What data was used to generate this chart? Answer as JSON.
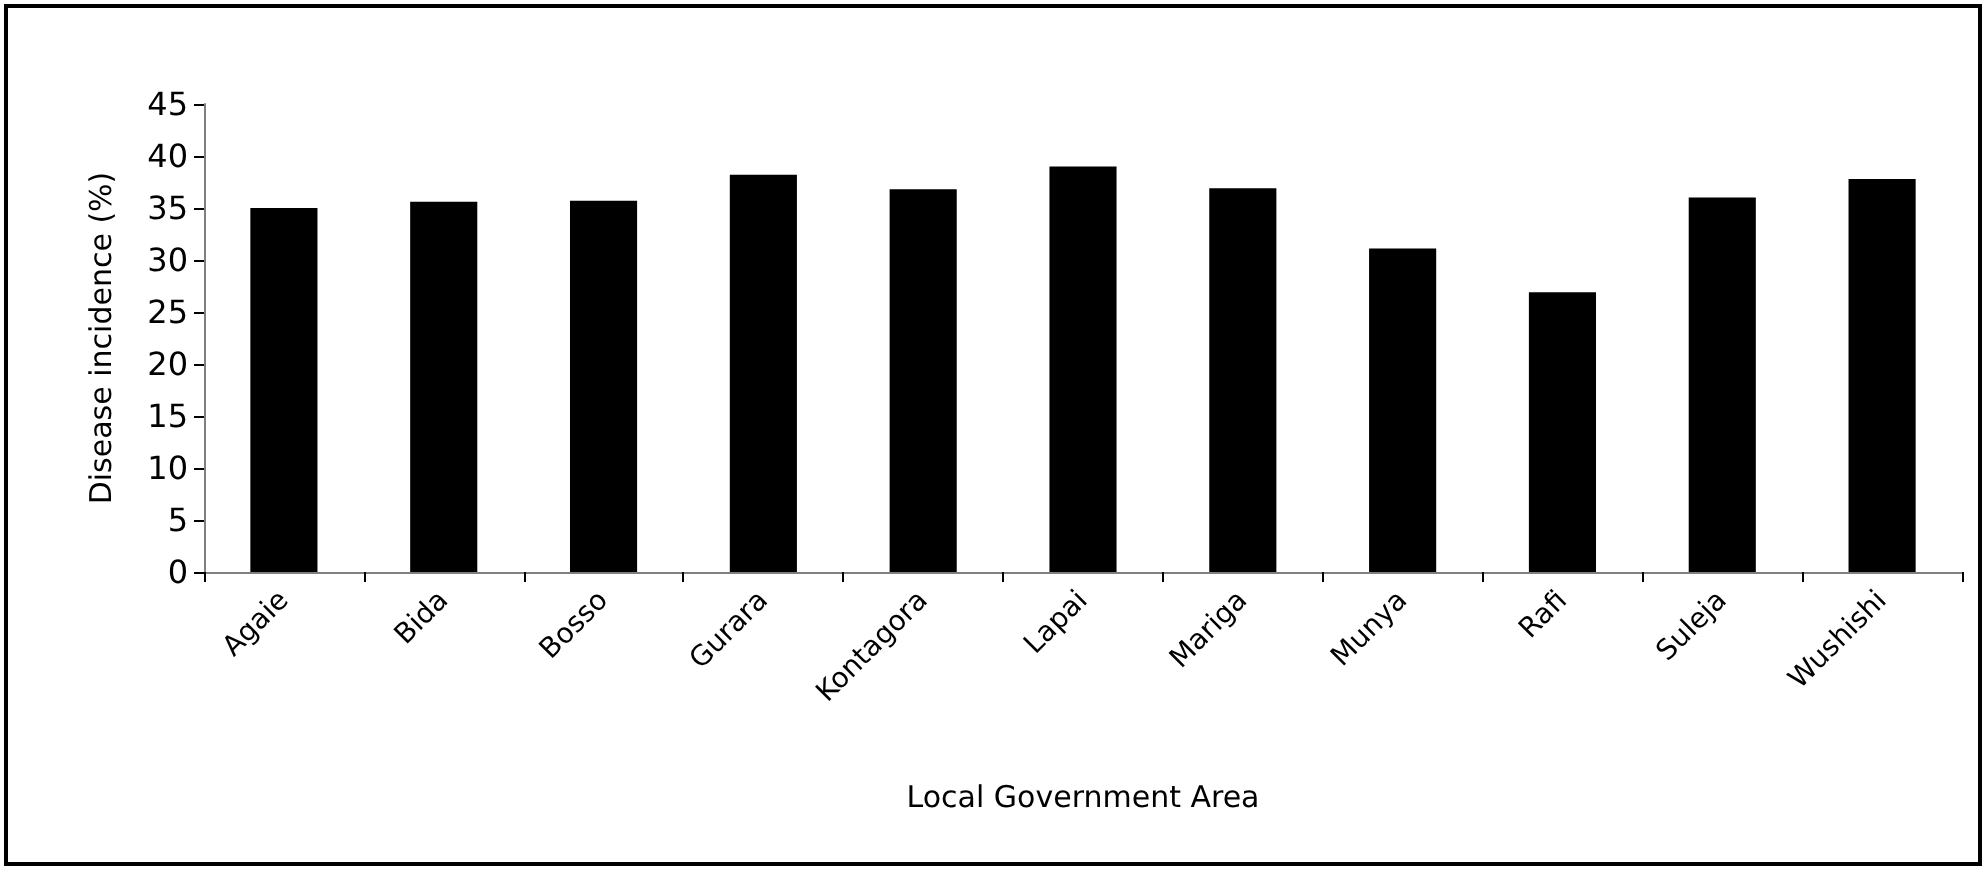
{
  "chart_data": {
    "type": "bar",
    "xlabel": "Local Government Area",
    "ylabel": "Disease incidence (%)",
    "categories": [
      "Agaie",
      "Bida",
      "Bosso",
      "Gurara",
      "Kontagora",
      "Lapai",
      "Mariga",
      "Munya",
      "Rafi",
      "Suleja",
      "Wushishi"
    ],
    "values": [
      35.0,
      35.6,
      35.7,
      38.2,
      36.8,
      39.0,
      36.9,
      31.1,
      26.9,
      36.0,
      37.8
    ],
    "color": "#000000",
    "ylim": [
      0,
      45
    ],
    "yticks": [
      0,
      5,
      10,
      15,
      20,
      25,
      30,
      35,
      40,
      45
    ],
    "grid": false
  }
}
